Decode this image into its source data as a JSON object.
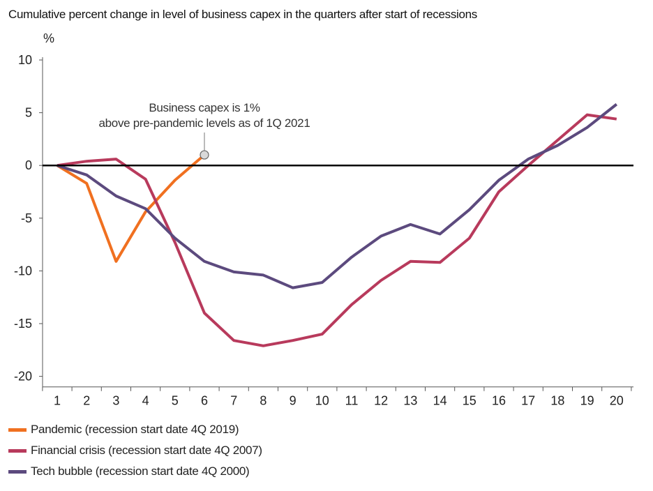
{
  "chart_data": {
    "type": "line",
    "title": "Cumulative percent change in level of business capex in the quarters after start of recessions",
    "ylabel": "%",
    "xlabel": "",
    "x": [
      1,
      2,
      3,
      4,
      5,
      6,
      7,
      8,
      9,
      10,
      11,
      12,
      13,
      14,
      15,
      16,
      17,
      18,
      19,
      20
    ],
    "x_tick_labels": [
      "1",
      "2",
      "3",
      "4",
      "5",
      "6",
      "7",
      "8",
      "9",
      "10",
      "11",
      "12",
      "13",
      "14",
      "15",
      "16",
      "17",
      "18",
      "19",
      "20"
    ],
    "y_ticks": [
      10,
      5,
      0,
      -5,
      -10,
      -15,
      -20
    ],
    "y_tick_labels": [
      "10",
      "5",
      "0",
      "-5",
      "-10",
      "-15",
      "-20"
    ],
    "ylim": [
      -21,
      10
    ],
    "xlim": [
      0.6,
      20.6
    ],
    "zero_line": true,
    "grid": false,
    "legend_position": "bottom-left",
    "series": [
      {
        "name": "Pandemic (recession start date 4Q 2019)",
        "color": "#f07020",
        "x": [
          1,
          2,
          3,
          4,
          5,
          6
        ],
        "values": [
          0,
          -1.7,
          -9.1,
          -4.4,
          -1.4,
          1.0
        ]
      },
      {
        "name": "Financial crisis (recession start date 4Q 2007)",
        "color": "#b83a5c",
        "x": [
          1,
          2,
          3,
          4,
          5,
          6,
          7,
          8,
          9,
          10,
          11,
          12,
          13,
          14,
          15,
          16,
          17,
          18,
          19,
          20
        ],
        "values": [
          0,
          0.4,
          0.6,
          -1.3,
          -7.3,
          -14.0,
          -16.6,
          -17.1,
          -16.6,
          -16.0,
          -13.2,
          -10.9,
          -9.1,
          -9.2,
          -6.9,
          -2.5,
          0.0,
          2.4,
          4.8,
          4.4
        ]
      },
      {
        "name": "Tech bubble (recession start date 4Q 2000)",
        "color": "#5c4a7e",
        "x": [
          1,
          2,
          3,
          4,
          5,
          6,
          7,
          8,
          9,
          10,
          11,
          12,
          13,
          14,
          15,
          16,
          17,
          18,
          19,
          20
        ],
        "values": [
          0,
          -0.9,
          -2.9,
          -4.1,
          -6.9,
          -9.1,
          -10.1,
          -10.4,
          -11.6,
          -11.1,
          -8.7,
          -6.7,
          -5.6,
          -6.5,
          -4.2,
          -1.4,
          0.6,
          1.9,
          3.6,
          5.8
        ]
      }
    ],
    "annotation": {
      "lines": [
        "Business capex is 1%",
        "above pre-pandemic levels as of 1Q 2021"
      ],
      "point": {
        "x": 6,
        "y": 1.0
      }
    }
  }
}
